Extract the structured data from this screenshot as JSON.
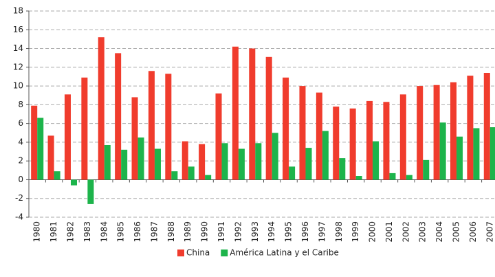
{
  "chart_data": {
    "type": "bar",
    "categories": [
      "1980",
      "1981",
      "1982",
      "1983",
      "1984",
      "1985",
      "1986",
      "1987",
      "1988",
      "1989",
      "1990",
      "1991",
      "1992",
      "1993",
      "1994",
      "1995",
      "1996",
      "1997",
      "1998",
      "1999",
      "2000",
      "2001",
      "2002",
      "2003",
      "2004",
      "2005",
      "2006",
      "2007"
    ],
    "series": [
      {
        "name": "China",
        "color": "#f03c2d",
        "values": [
          7.9,
          4.7,
          9.1,
          10.9,
          15.2,
          13.5,
          8.8,
          11.6,
          11.3,
          4.1,
          3.8,
          9.2,
          14.2,
          14.0,
          13.1,
          10.9,
          10.0,
          9.3,
          7.8,
          7.6,
          8.4,
          8.3,
          9.1,
          10.0,
          10.1,
          10.4,
          11.1,
          11.4
        ]
      },
      {
        "name": "América Latina y el Caribe",
        "color": "#1db44b",
        "values": [
          6.6,
          0.9,
          -0.6,
          -2.6,
          3.7,
          3.2,
          4.5,
          3.3,
          0.9,
          1.4,
          0.5,
          3.9,
          3.3,
          3.9,
          5.0,
          1.4,
          3.4,
          5.2,
          2.3,
          0.4,
          4.1,
          0.7,
          0.5,
          2.1,
          6.1,
          4.6,
          5.5,
          5.6
        ]
      }
    ],
    "ylim": [
      -4,
      18
    ],
    "yticks": [
      -4,
      -2,
      0,
      2,
      4,
      6,
      8,
      10,
      12,
      14,
      16,
      18
    ],
    "grid": true,
    "legend": "bottom"
  }
}
